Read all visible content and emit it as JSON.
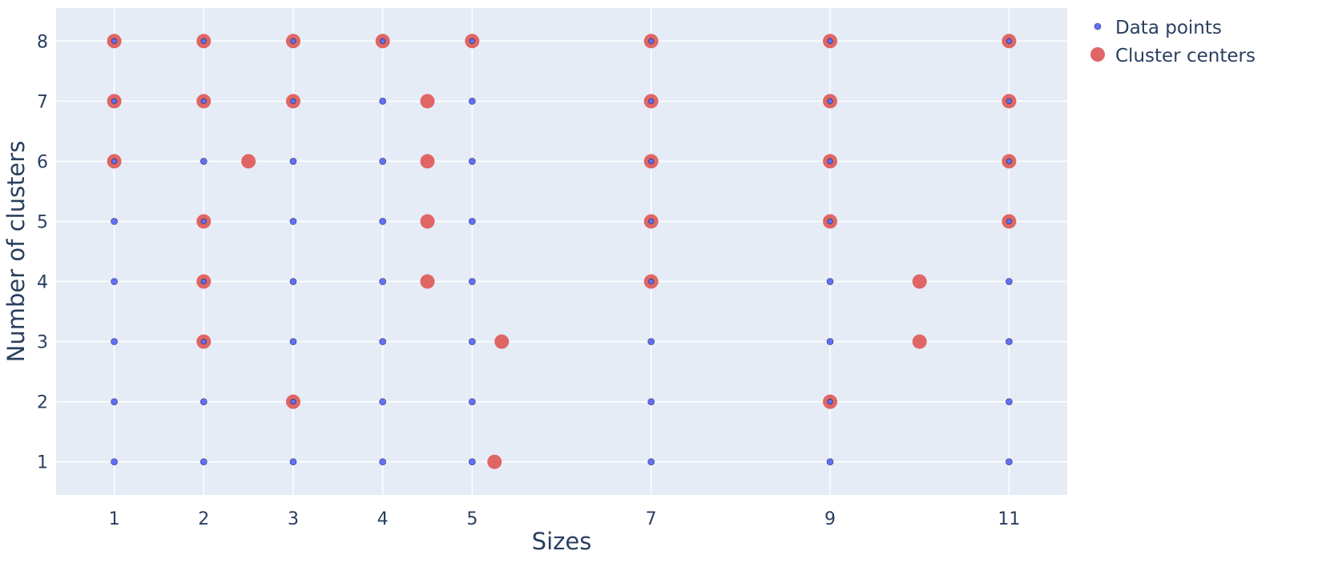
{
  "chart_data": {
    "type": "scatter",
    "xlabel": "Sizes",
    "ylabel": "Number of clusters",
    "xlim": [
      0.35,
      11.65
    ],
    "ylim": [
      0.45,
      8.55
    ],
    "xticks": [
      1,
      2,
      3,
      4,
      5,
      7,
      9,
      11
    ],
    "yticks": [
      1,
      2,
      3,
      4,
      5,
      6,
      7,
      8
    ],
    "grid": true,
    "legend_position": "top-right outside",
    "colors": {
      "plot_bg": "#e5ecf6",
      "grid": "#ffffff",
      "data_points": "#636efa",
      "cluster_centers": "#e06666",
      "text": "#2a3f5f"
    },
    "series": [
      {
        "name": "Data points",
        "points": [
          [
            1,
            1
          ],
          [
            1,
            2
          ],
          [
            1,
            3
          ],
          [
            1,
            4
          ],
          [
            1,
            5
          ],
          [
            1,
            6
          ],
          [
            1,
            7
          ],
          [
            1,
            8
          ],
          [
            2,
            1
          ],
          [
            2,
            2
          ],
          [
            2,
            3
          ],
          [
            2,
            4
          ],
          [
            2,
            5
          ],
          [
            2,
            6
          ],
          [
            2,
            7
          ],
          [
            2,
            8
          ],
          [
            3,
            1
          ],
          [
            3,
            2
          ],
          [
            3,
            3
          ],
          [
            3,
            4
          ],
          [
            3,
            5
          ],
          [
            3,
            6
          ],
          [
            3,
            7
          ],
          [
            3,
            8
          ],
          [
            4,
            1
          ],
          [
            4,
            2
          ],
          [
            4,
            3
          ],
          [
            4,
            4
          ],
          [
            4,
            5
          ],
          [
            4,
            6
          ],
          [
            4,
            7
          ],
          [
            4,
            8
          ],
          [
            5,
            1
          ],
          [
            5,
            2
          ],
          [
            5,
            3
          ],
          [
            5,
            4
          ],
          [
            5,
            5
          ],
          [
            5,
            6
          ],
          [
            5,
            7
          ],
          [
            5,
            8
          ],
          [
            7,
            1
          ],
          [
            7,
            2
          ],
          [
            7,
            3
          ],
          [
            7,
            4
          ],
          [
            7,
            5
          ],
          [
            7,
            6
          ],
          [
            7,
            7
          ],
          [
            7,
            8
          ],
          [
            9,
            1
          ],
          [
            9,
            2
          ],
          [
            9,
            3
          ],
          [
            9,
            4
          ],
          [
            9,
            5
          ],
          [
            9,
            6
          ],
          [
            9,
            7
          ],
          [
            9,
            8
          ],
          [
            11,
            1
          ],
          [
            11,
            2
          ],
          [
            11,
            3
          ],
          [
            11,
            4
          ],
          [
            11,
            5
          ],
          [
            11,
            6
          ],
          [
            11,
            7
          ],
          [
            11,
            8
          ]
        ]
      },
      {
        "name": "Cluster centers",
        "points": [
          [
            1,
            6
          ],
          [
            1,
            7
          ],
          [
            1,
            8
          ],
          [
            2,
            3
          ],
          [
            2,
            4
          ],
          [
            2,
            5
          ],
          [
            2,
            7
          ],
          [
            2,
            8
          ],
          [
            2.5,
            6
          ],
          [
            3,
            2
          ],
          [
            3,
            7
          ],
          [
            3,
            8
          ],
          [
            4,
            8
          ],
          [
            4.5,
            4
          ],
          [
            4.5,
            5
          ],
          [
            4.5,
            6
          ],
          [
            4.5,
            7
          ],
          [
            5,
            8
          ],
          [
            5.25,
            1
          ],
          [
            5.33,
            3
          ],
          [
            7,
            4
          ],
          [
            7,
            5
          ],
          [
            7,
            6
          ],
          [
            7,
            7
          ],
          [
            7,
            8
          ],
          [
            9,
            2
          ],
          [
            9,
            5
          ],
          [
            9,
            6
          ],
          [
            9,
            7
          ],
          [
            9,
            8
          ],
          [
            10,
            3
          ],
          [
            10,
            4
          ],
          [
            11,
            5
          ],
          [
            11,
            6
          ],
          [
            11,
            7
          ],
          [
            11,
            8
          ]
        ]
      }
    ]
  }
}
